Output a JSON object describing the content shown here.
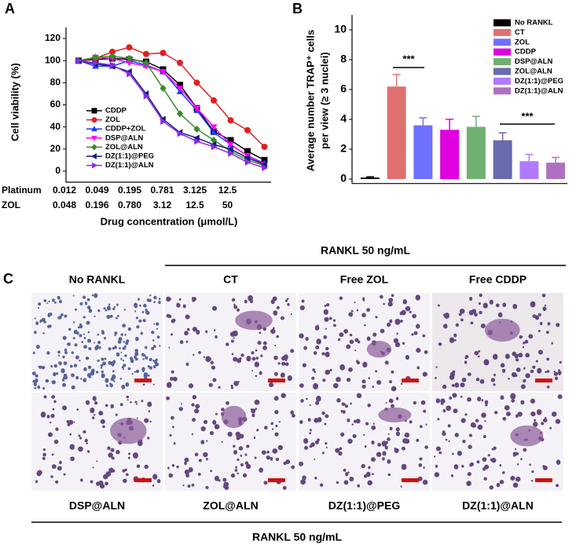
{
  "chart_data": [
    {
      "type": "line",
      "panel_label": "A",
      "y_label": "Cell viability (%)",
      "x_label": "Drug concentration (μmol/L)",
      "x_label_rows": [
        {
          "name": "Platinum",
          "labels": [
            "0.012",
            "0.049",
            "0.195",
            "0.781",
            "3.125",
            "12.5"
          ]
        },
        {
          "name": "ZOL",
          "labels": [
            "0.048",
            "0.196",
            "0.780",
            "3.12",
            "12.5",
            "50"
          ]
        }
      ],
      "ylim": [
        -10,
        130
      ],
      "yticks": [
        0,
        20,
        40,
        60,
        80,
        100,
        120
      ],
      "grid": false,
      "series": [
        {
          "name": "CDDP",
          "color": "#000000",
          "marker": "square",
          "values": [
            100,
            101,
            102,
            101,
            99,
            92,
            78,
            57,
            36,
            28,
            18,
            10
          ]
        },
        {
          "name": "ZOL",
          "color": "#e02020",
          "marker": "circle",
          "values": [
            100,
            102,
            108,
            112,
            106,
            107,
            98,
            80,
            64,
            46,
            37,
            22
          ]
        },
        {
          "name": "CDDP+ZOL",
          "color": "#1a3cff",
          "marker": "triangle-up",
          "values": [
            100,
            95,
            95,
            100,
            96,
            90,
            72,
            55,
            35,
            24,
            14,
            7
          ]
        },
        {
          "name": "DSP@ALN",
          "color": "#ff00ff",
          "marker": "triangle-down",
          "values": [
            100,
            103,
            102,
            98,
            95,
            90,
            75,
            57,
            40,
            24,
            14,
            6
          ]
        },
        {
          "name": "ZOL@ALN",
          "color": "#3a8a2a",
          "marker": "diamond",
          "values": [
            100,
            103,
            104,
            102,
            98,
            75,
            52,
            38,
            28,
            18,
            10,
            5
          ]
        },
        {
          "name": "DZ(1:1)@PEG",
          "color": "#1a1a80",
          "marker": "triangle-left",
          "values": [
            100,
            97,
            95,
            90,
            70,
            47,
            35,
            30,
            24,
            20,
            12,
            6
          ]
        },
        {
          "name": "DZ(1:1)@ALN",
          "color": "#8a2be2",
          "marker": "triangle-right",
          "values": [
            100,
            98,
            96,
            88,
            68,
            45,
            34,
            27,
            22,
            16,
            8,
            3
          ]
        }
      ]
    },
    {
      "type": "bar",
      "panel_label": "B",
      "y_label": [
        "Average number TRAP⁺ cells",
        "per view (≥ 3 nuclei)"
      ],
      "categories": [
        "No RANKL",
        "CT",
        "ZOL",
        "CDDP",
        "DSP@ALN",
        "ZOL@ALN",
        "DZ(1:1)@PEG",
        "DZ(1:1)@ALN"
      ],
      "values": [
        0.1,
        6.2,
        3.6,
        3.3,
        3.5,
        2.6,
        1.2,
        1.1
      ],
      "errors": [
        0.05,
        0.8,
        0.5,
        0.7,
        0.7,
        0.5,
        0.45,
        0.35
      ],
      "colors": [
        "#000000",
        "#e07070",
        "#7070ff",
        "#e000e0",
        "#70b070",
        "#6a6aae",
        "#b07aff",
        "#b070c0"
      ],
      "ylim": [
        -0.3,
        11
      ],
      "yticks": [
        0,
        2,
        4,
        6,
        8,
        10
      ],
      "grid": false,
      "legend": "upper right",
      "annotations": [
        "***",
        "***"
      ]
    }
  ],
  "panel_c": {
    "label": "C",
    "top_heading": "RANKL 50 ng/mL",
    "top_titles": [
      "No RANKL",
      "CT",
      "Free ZOL",
      "Free CDDP"
    ],
    "bottom_titles": [
      "DSP@ALN",
      "ZOL@ALN",
      "DZ(1:1)@PEG",
      "DZ(1:1)@ALN"
    ],
    "bottom_heading": "RANKL 50 ng/mL"
  }
}
